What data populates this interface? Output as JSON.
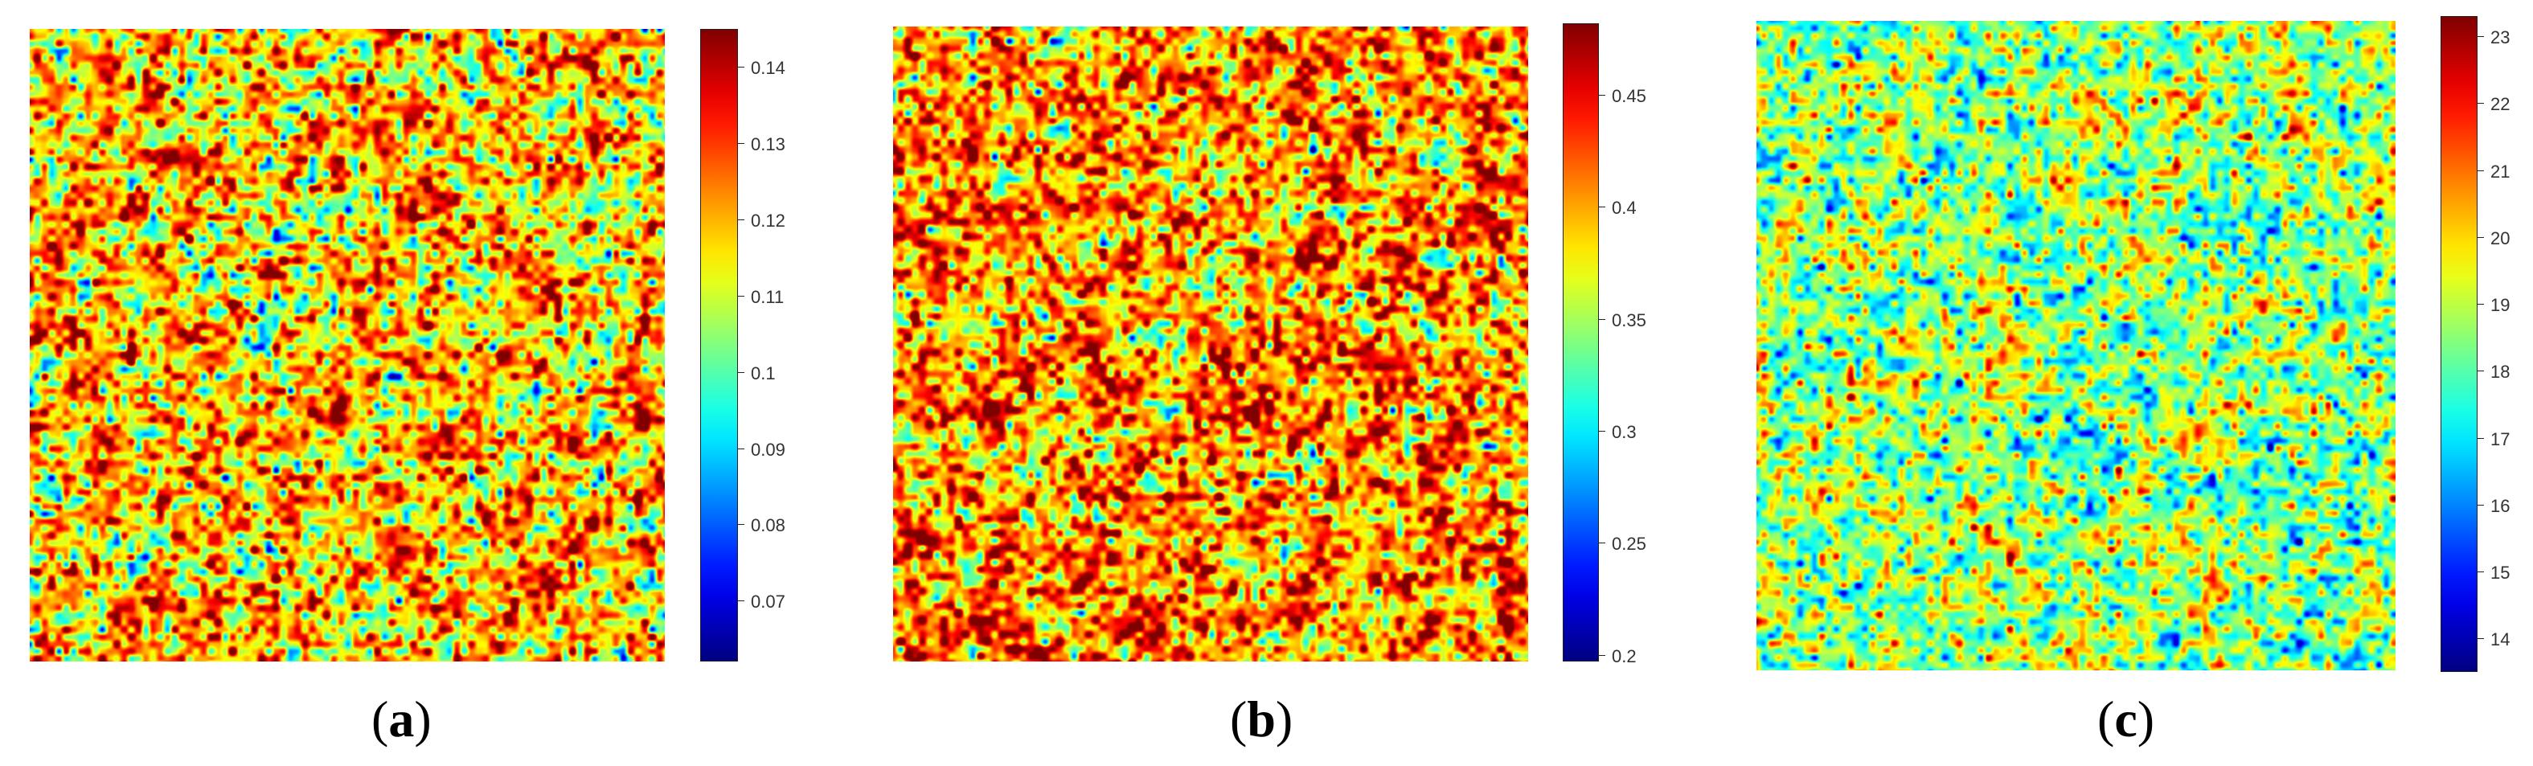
{
  "chart_data": [
    {
      "type": "heatmap",
      "panel_label": "(a)",
      "panel_letter": "a",
      "colorbar": {
        "min": 0.062,
        "max": 0.145,
        "ticks": [
          "0.07",
          "0.08",
          "0.09",
          "0.1",
          "0.11",
          "0.12",
          "0.13",
          "0.14"
        ]
      },
      "field": {
        "mean": 0.118,
        "std": 0.0135
      },
      "colormap": "jet"
    },
    {
      "type": "heatmap",
      "panel_label": "(b)",
      "panel_letter": "b",
      "colorbar": {
        "min": 0.197,
        "max": 0.482,
        "ticks": [
          "0.2",
          "0.25",
          "0.3",
          "0.35",
          "0.4",
          "0.45"
        ]
      },
      "field": {
        "mean": 0.405,
        "std": 0.045
      },
      "colormap": "jet"
    },
    {
      "type": "heatmap",
      "panel_label": "(c)",
      "panel_letter": "c",
      "colorbar": {
        "min": 13.5,
        "max": 23.3,
        "ticks": [
          "14",
          "15",
          "16",
          "17",
          "18",
          "19",
          "20",
          "21",
          "22",
          "23"
        ]
      },
      "field": {
        "mean": 18.6,
        "std": 1.25
      },
      "colormap": "jet"
    }
  ]
}
